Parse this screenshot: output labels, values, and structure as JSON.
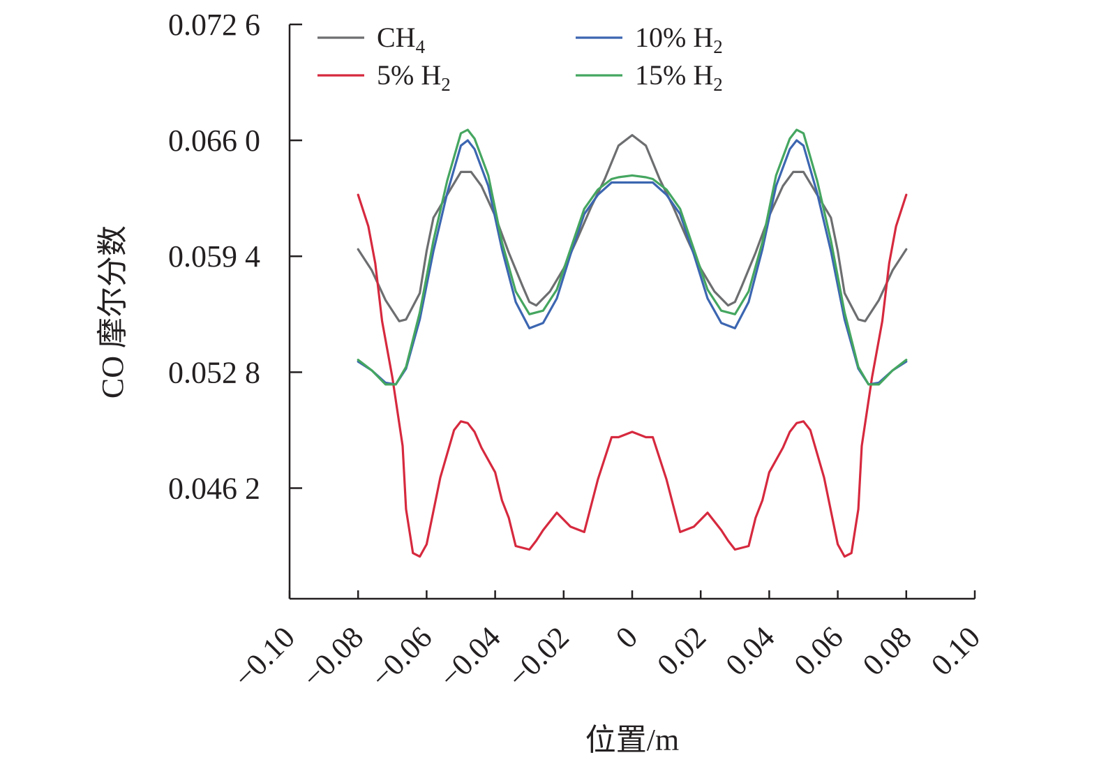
{
  "chart_data": {
    "type": "line",
    "xlabel": "位置/m",
    "ylabel": "CO 摩尔分数",
    "xlim": [
      -0.1,
      0.1
    ],
    "ylim": [
      0.0399,
      0.0726
    ],
    "x_ticks": [
      -0.1,
      -0.08,
      -0.06,
      -0.04,
      -0.02,
      0,
      0.02,
      0.04,
      0.06,
      0.08,
      0.1
    ],
    "x_tick_labels": [
      "−0.10",
      "−0.08",
      "−0.06",
      "−0.04",
      "−0.02",
      "0",
      "0.02",
      "0.04",
      "0.06",
      "0.08",
      "0.10"
    ],
    "y_ticks": [
      0.0726,
      0.066,
      0.0594,
      0.0528,
      0.0462
    ],
    "y_tick_labels": [
      "0.072 6",
      "0.066 0",
      "0.059 4",
      "0.052 8",
      "0.046 2"
    ],
    "legend_position": "top",
    "series": [
      {
        "name": "CH4",
        "legend_main": "CH",
        "legend_sub": "4",
        "color": "#6d6e70",
        "points": [
          [
            -0.08,
            0.0598
          ],
          [
            -0.076,
            0.0586
          ],
          [
            -0.072,
            0.0569
          ],
          [
            -0.068,
            0.0557
          ],
          [
            -0.066,
            0.0558
          ],
          [
            -0.062,
            0.0573
          ],
          [
            -0.06,
            0.0597
          ],
          [
            -0.058,
            0.0616
          ],
          [
            -0.054,
            0.0629
          ],
          [
            -0.05,
            0.0642
          ],
          [
            -0.047,
            0.0642
          ],
          [
            -0.044,
            0.0634
          ],
          [
            -0.04,
            0.0617
          ],
          [
            -0.036,
            0.0596
          ],
          [
            -0.032,
            0.0577
          ],
          [
            -0.03,
            0.0568
          ],
          [
            -0.028,
            0.0566
          ],
          [
            -0.024,
            0.0574
          ],
          [
            -0.02,
            0.0587
          ],
          [
            -0.016,
            0.0604
          ],
          [
            -0.012,
            0.0622
          ],
          [
            -0.008,
            0.0638
          ],
          [
            -0.004,
            0.0657
          ],
          [
            0,
            0.0663
          ],
          [
            0.004,
            0.0657
          ],
          [
            0.008,
            0.0638
          ],
          [
            0.012,
            0.0622
          ],
          [
            0.016,
            0.0604
          ],
          [
            0.02,
            0.0587
          ],
          [
            0.024,
            0.0574
          ],
          [
            0.028,
            0.0566
          ],
          [
            0.03,
            0.0568
          ],
          [
            0.032,
            0.0577
          ],
          [
            0.036,
            0.0596
          ],
          [
            0.04,
            0.0617
          ],
          [
            0.044,
            0.0634
          ],
          [
            0.047,
            0.0642
          ],
          [
            0.05,
            0.0642
          ],
          [
            0.054,
            0.0629
          ],
          [
            0.058,
            0.0616
          ],
          [
            0.06,
            0.0597
          ],
          [
            0.062,
            0.0573
          ],
          [
            0.066,
            0.0558
          ],
          [
            0.068,
            0.0557
          ],
          [
            0.072,
            0.0569
          ],
          [
            0.076,
            0.0586
          ],
          [
            0.08,
            0.0598
          ]
        ]
      },
      {
        "name": "5% H2",
        "legend_main": "5% H",
        "legend_sub": "2",
        "color": "#d6293e",
        "points": [
          [
            -0.08,
            0.0629
          ],
          [
            -0.077,
            0.0611
          ],
          [
            -0.075,
            0.059
          ],
          [
            -0.073,
            0.0557
          ],
          [
            -0.07,
            0.0525
          ],
          [
            -0.067,
            0.0486
          ],
          [
            -0.066,
            0.045
          ],
          [
            -0.064,
            0.0425
          ],
          [
            -0.062,
            0.0423
          ],
          [
            -0.06,
            0.043
          ],
          [
            -0.058,
            0.0449
          ],
          [
            -0.056,
            0.0468
          ],
          [
            -0.052,
            0.0495
          ],
          [
            -0.05,
            0.05
          ],
          [
            -0.048,
            0.0499
          ],
          [
            -0.046,
            0.0494
          ],
          [
            -0.044,
            0.0485
          ],
          [
            -0.04,
            0.0471
          ],
          [
            -0.038,
            0.0455
          ],
          [
            -0.036,
            0.0445
          ],
          [
            -0.034,
            0.0429
          ],
          [
            -0.03,
            0.0427
          ],
          [
            -0.028,
            0.0432
          ],
          [
            -0.026,
            0.0438
          ],
          [
            -0.022,
            0.0448
          ],
          [
            -0.018,
            0.044
          ],
          [
            -0.014,
            0.0437
          ],
          [
            -0.01,
            0.0467
          ],
          [
            -0.006,
            0.0491
          ],
          [
            -0.004,
            0.0491
          ],
          [
            0,
            0.0494
          ],
          [
            0.004,
            0.0491
          ],
          [
            0.006,
            0.0491
          ],
          [
            0.01,
            0.0467
          ],
          [
            0.014,
            0.0437
          ],
          [
            0.018,
            0.044
          ],
          [
            0.022,
            0.0448
          ],
          [
            0.026,
            0.0438
          ],
          [
            0.028,
            0.0432
          ],
          [
            0.03,
            0.0427
          ],
          [
            0.034,
            0.0429
          ],
          [
            0.036,
            0.0445
          ],
          [
            0.038,
            0.0455
          ],
          [
            0.04,
            0.0471
          ],
          [
            0.044,
            0.0485
          ],
          [
            0.046,
            0.0494
          ],
          [
            0.048,
            0.0499
          ],
          [
            0.05,
            0.05
          ],
          [
            0.052,
            0.0495
          ],
          [
            0.056,
            0.0468
          ],
          [
            0.058,
            0.0449
          ],
          [
            0.06,
            0.043
          ],
          [
            0.062,
            0.0423
          ],
          [
            0.064,
            0.0425
          ],
          [
            0.066,
            0.045
          ],
          [
            0.067,
            0.0486
          ],
          [
            0.07,
            0.0525
          ],
          [
            0.073,
            0.0557
          ],
          [
            0.075,
            0.059
          ],
          [
            0.077,
            0.0611
          ],
          [
            0.08,
            0.0629
          ]
        ]
      },
      {
        "name": "10% H2",
        "legend_main": "10% H",
        "legend_sub": "2",
        "color": "#3c66b1",
        "points": [
          [
            -0.08,
            0.0534
          ],
          [
            -0.076,
            0.0529
          ],
          [
            -0.072,
            0.0522
          ],
          [
            -0.069,
            0.0521
          ],
          [
            -0.066,
            0.053
          ],
          [
            -0.062,
            0.0558
          ],
          [
            -0.058,
            0.0597
          ],
          [
            -0.054,
            0.063
          ],
          [
            -0.05,
            0.0657
          ],
          [
            -0.048,
            0.066
          ],
          [
            -0.046,
            0.0655
          ],
          [
            -0.042,
            0.0634
          ],
          [
            -0.038,
            0.0598
          ],
          [
            -0.034,
            0.0568
          ],
          [
            -0.03,
            0.0553
          ],
          [
            -0.026,
            0.0556
          ],
          [
            -0.022,
            0.057
          ],
          [
            -0.018,
            0.0595
          ],
          [
            -0.014,
            0.0618
          ],
          [
            -0.01,
            0.0629
          ],
          [
            -0.006,
            0.0636
          ],
          [
            -0.004,
            0.0636
          ],
          [
            0,
            0.0636
          ],
          [
            0.004,
            0.0636
          ],
          [
            0.006,
            0.0636
          ],
          [
            0.01,
            0.0629
          ],
          [
            0.014,
            0.0618
          ],
          [
            0.018,
            0.0595
          ],
          [
            0.022,
            0.057
          ],
          [
            0.026,
            0.0556
          ],
          [
            0.03,
            0.0553
          ],
          [
            0.034,
            0.0568
          ],
          [
            0.038,
            0.0598
          ],
          [
            0.042,
            0.0634
          ],
          [
            0.046,
            0.0655
          ],
          [
            0.048,
            0.066
          ],
          [
            0.05,
            0.0657
          ],
          [
            0.054,
            0.063
          ],
          [
            0.058,
            0.0597
          ],
          [
            0.062,
            0.0558
          ],
          [
            0.066,
            0.053
          ],
          [
            0.069,
            0.0521
          ],
          [
            0.072,
            0.0522
          ],
          [
            0.076,
            0.0529
          ],
          [
            0.08,
            0.0534
          ]
        ]
      },
      {
        "name": "15% H2",
        "legend_main": "15% H",
        "legend_sub": "2",
        "color": "#45a660",
        "points": [
          [
            -0.08,
            0.0535
          ],
          [
            -0.076,
            0.0529
          ],
          [
            -0.072,
            0.0521
          ],
          [
            -0.069,
            0.0521
          ],
          [
            -0.066,
            0.0531
          ],
          [
            -0.062,
            0.0562
          ],
          [
            -0.058,
            0.0603
          ],
          [
            -0.054,
            0.0637
          ],
          [
            -0.05,
            0.0664
          ],
          [
            -0.048,
            0.0666
          ],
          [
            -0.046,
            0.0661
          ],
          [
            -0.042,
            0.064
          ],
          [
            -0.038,
            0.0602
          ],
          [
            -0.034,
            0.0574
          ],
          [
            -0.03,
            0.0561
          ],
          [
            -0.026,
            0.0563
          ],
          [
            -0.022,
            0.0575
          ],
          [
            -0.018,
            0.0598
          ],
          [
            -0.014,
            0.0621
          ],
          [
            -0.01,
            0.0632
          ],
          [
            -0.006,
            0.0638
          ],
          [
            -0.004,
            0.0639
          ],
          [
            0,
            0.064
          ],
          [
            0.004,
            0.0639
          ],
          [
            0.006,
            0.0638
          ],
          [
            0.01,
            0.0632
          ],
          [
            0.014,
            0.0621
          ],
          [
            0.018,
            0.0598
          ],
          [
            0.022,
            0.0575
          ],
          [
            0.026,
            0.0563
          ],
          [
            0.03,
            0.0561
          ],
          [
            0.034,
            0.0574
          ],
          [
            0.038,
            0.0602
          ],
          [
            0.042,
            0.064
          ],
          [
            0.046,
            0.0661
          ],
          [
            0.048,
            0.0666
          ],
          [
            0.05,
            0.0664
          ],
          [
            0.054,
            0.0637
          ],
          [
            0.058,
            0.0603
          ],
          [
            0.062,
            0.0562
          ],
          [
            0.066,
            0.0531
          ],
          [
            0.069,
            0.0521
          ],
          [
            0.072,
            0.0521
          ],
          [
            0.076,
            0.0529
          ],
          [
            0.08,
            0.0535
          ]
        ]
      }
    ]
  }
}
